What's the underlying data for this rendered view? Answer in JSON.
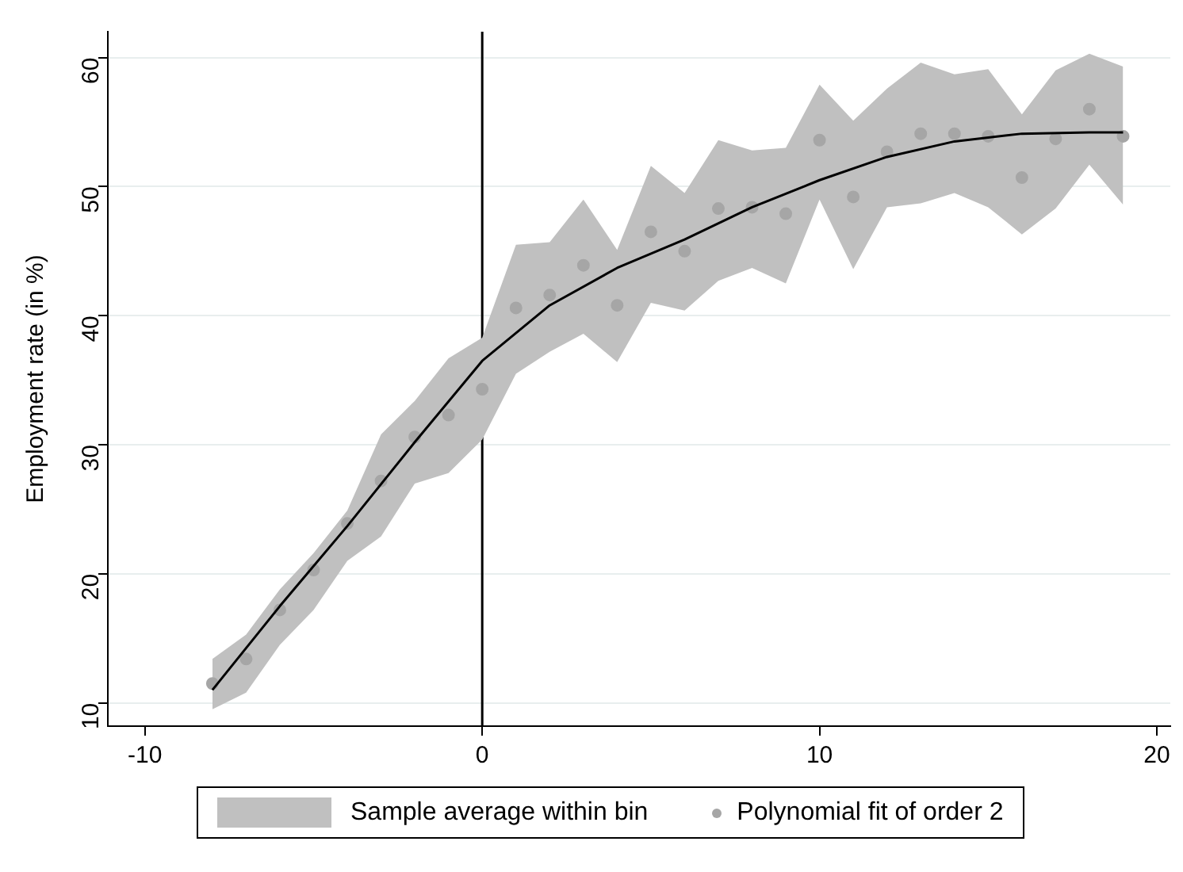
{
  "chart_data": {
    "type": "scatter",
    "ylabel": "Employment rate (in %)",
    "xlim": [
      -11.1,
      20.4
    ],
    "ylim": [
      8.2,
      62
    ],
    "xticks": [
      -10,
      0,
      10,
      20
    ],
    "yticks": [
      10,
      20,
      30,
      40,
      50,
      60
    ],
    "grid": "y",
    "legend": "bottom",
    "ref_lines": [
      {
        "axis": "x",
        "value": 0,
        "color": "#000000"
      }
    ],
    "series": [
      {
        "name": "Sample average within bin",
        "type": "area",
        "color": "#c0c0c0",
        "x": [
          -8,
          -7,
          -6,
          -5,
          -4,
          -3,
          -2,
          -1,
          0,
          1,
          2,
          3,
          4,
          5,
          6,
          7,
          8,
          9,
          10,
          11,
          12,
          13,
          14,
          15,
          16,
          17,
          18,
          19
        ],
        "values": [
          null,
          null,
          null,
          null,
          null,
          null,
          null,
          null,
          null,
          null,
          null,
          null,
          null,
          null,
          null,
          null,
          null,
          null,
          null,
          null,
          null,
          null,
          null,
          null,
          null,
          null,
          null,
          null
        ],
        "lower": [
          9.5,
          10.8,
          14.5,
          17.2,
          21.0,
          22.9,
          27.0,
          27.8,
          30.4,
          35.5,
          37.2,
          38.6,
          36.4,
          41.0,
          40.4,
          42.7,
          43.7,
          42.5,
          49.0,
          43.6,
          48.4,
          48.7,
          49.5,
          48.4,
          46.3,
          48.3,
          51.7,
          48.6
        ],
        "upper": [
          13.4,
          15.3,
          18.8,
          21.6,
          24.9,
          30.8,
          33.4,
          36.7,
          38.3,
          45.5,
          45.7,
          49.0,
          45.1,
          51.6,
          49.5,
          53.6,
          52.8,
          53.0,
          57.9,
          55.1,
          57.6,
          59.6,
          58.7,
          59.1,
          55.6,
          59.0,
          60.3,
          59.3
        ]
      },
      {
        "name": "Polynomial fit of order 2",
        "marker": "circle",
        "color": "#a6a6a6",
        "x": [
          -8,
          -7,
          -6,
          -5,
          -4,
          -3,
          -2,
          -1,
          0,
          1,
          2,
          3,
          4,
          5,
          6,
          7,
          8,
          9,
          10,
          11,
          12,
          13,
          14,
          15,
          16,
          17,
          18,
          19
        ],
        "values": [
          11.5,
          13.4,
          17.2,
          20.3,
          23.9,
          27.2,
          30.6,
          32.3,
          34.3,
          40.6,
          41.6,
          43.9,
          40.8,
          46.5,
          45.0,
          48.3,
          48.4,
          47.9,
          53.6,
          49.2,
          52.7,
          54.1,
          54.1,
          53.9,
          50.7,
          53.7,
          56.0,
          53.9
        ]
      },
      {
        "type": "line",
        "marker": "none",
        "color": "#000000",
        "x": [
          -8,
          -6,
          -4,
          -2,
          0,
          2,
          4,
          6,
          8,
          10,
          12,
          14,
          16,
          18,
          19
        ],
        "values": [
          11,
          17.5,
          23.7,
          30.2,
          36.5,
          40.8,
          43.7,
          45.9,
          48.4,
          50.5,
          52.3,
          53.5,
          54.1,
          54.2,
          54.2
        ]
      }
    ]
  }
}
